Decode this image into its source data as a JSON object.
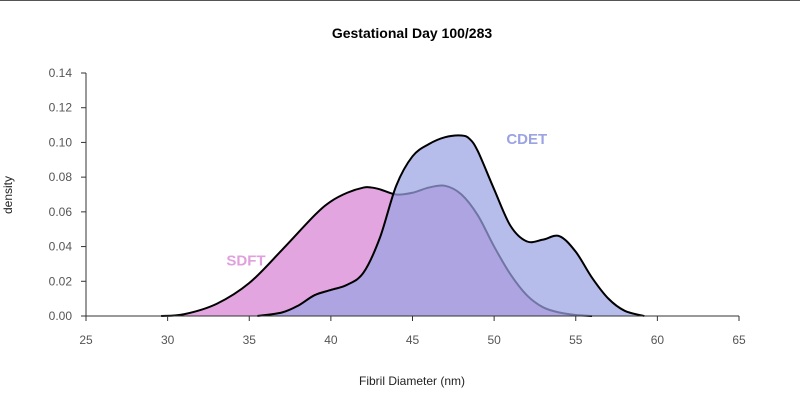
{
  "chart_data": {
    "type": "area",
    "title": "Gestational Day 100/283",
    "xlabel": "Fibril Diameter (nm)",
    "ylabel": "density",
    "xlim": [
      25,
      65
    ],
    "ylim": [
      0,
      0.14
    ],
    "x_ticks": [
      "25",
      "30",
      "35",
      "40",
      "45",
      "50",
      "55",
      "60",
      "65"
    ],
    "y_ticks": [
      "0.00",
      "0.02",
      "0.04",
      "0.06",
      "0.08",
      "0.10",
      "0.12",
      "0.14"
    ],
    "series": [
      {
        "name": "SDFT",
        "color": "#e0a0dd",
        "label_at": [
          34.8,
          0.029
        ],
        "x": [
          29.6,
          31,
          33,
          35,
          37,
          39,
          40,
          41,
          42,
          42.5,
          43,
          44,
          45,
          46,
          47,
          48,
          49,
          50,
          51,
          52,
          53,
          54,
          55,
          56
        ],
        "y": [
          0.0,
          0.001,
          0.007,
          0.019,
          0.038,
          0.058,
          0.066,
          0.071,
          0.074,
          0.074,
          0.073,
          0.07,
          0.071,
          0.074,
          0.075,
          0.07,
          0.058,
          0.04,
          0.024,
          0.012,
          0.005,
          0.002,
          0.0006,
          0.0
        ]
      },
      {
        "name": "CDET",
        "color": "#9ba3e3",
        "label_at": [
          52.0,
          0.099
        ],
        "x": [
          35.5,
          37,
          38,
          39,
          40,
          41,
          42,
          43,
          44,
          45,
          46,
          47,
          48,
          48.5,
          49,
          50,
          51,
          52,
          53,
          54,
          55,
          56,
          57,
          58,
          59.2
        ],
        "y": [
          0.0,
          0.002,
          0.006,
          0.012,
          0.015,
          0.018,
          0.025,
          0.045,
          0.075,
          0.092,
          0.099,
          0.103,
          0.104,
          0.102,
          0.095,
          0.073,
          0.052,
          0.043,
          0.044,
          0.046,
          0.037,
          0.022,
          0.01,
          0.003,
          0.0
        ]
      }
    ]
  }
}
